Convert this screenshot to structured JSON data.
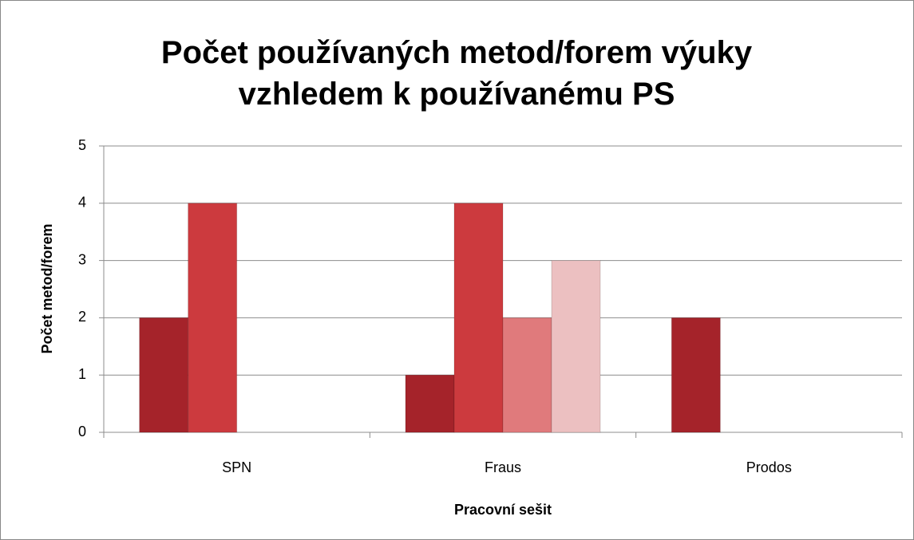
{
  "chart_data": {
    "type": "bar",
    "title": "Počet používaných metod/forem výuky vzhledem k používanému PS",
    "xlabel": "Pracovní sešit",
    "ylabel": "Počet metod/forem",
    "categories": [
      "SPN",
      "Fraus",
      "Prodos"
    ],
    "series": [
      {
        "color": "#a5232a",
        "values": [
          2,
          1,
          2
        ]
      },
      {
        "color": "#cc3a3e",
        "values": [
          4,
          4,
          0
        ]
      },
      {
        "color": "#e07a7c",
        "values": [
          0,
          2,
          0
        ]
      },
      {
        "color": "#ecc0c1",
        "values": [
          0,
          3,
          0
        ]
      }
    ],
    "ylim": [
      0,
      5
    ],
    "yticks": [
      0,
      1,
      2,
      3,
      4,
      5
    ],
    "grid": true
  }
}
